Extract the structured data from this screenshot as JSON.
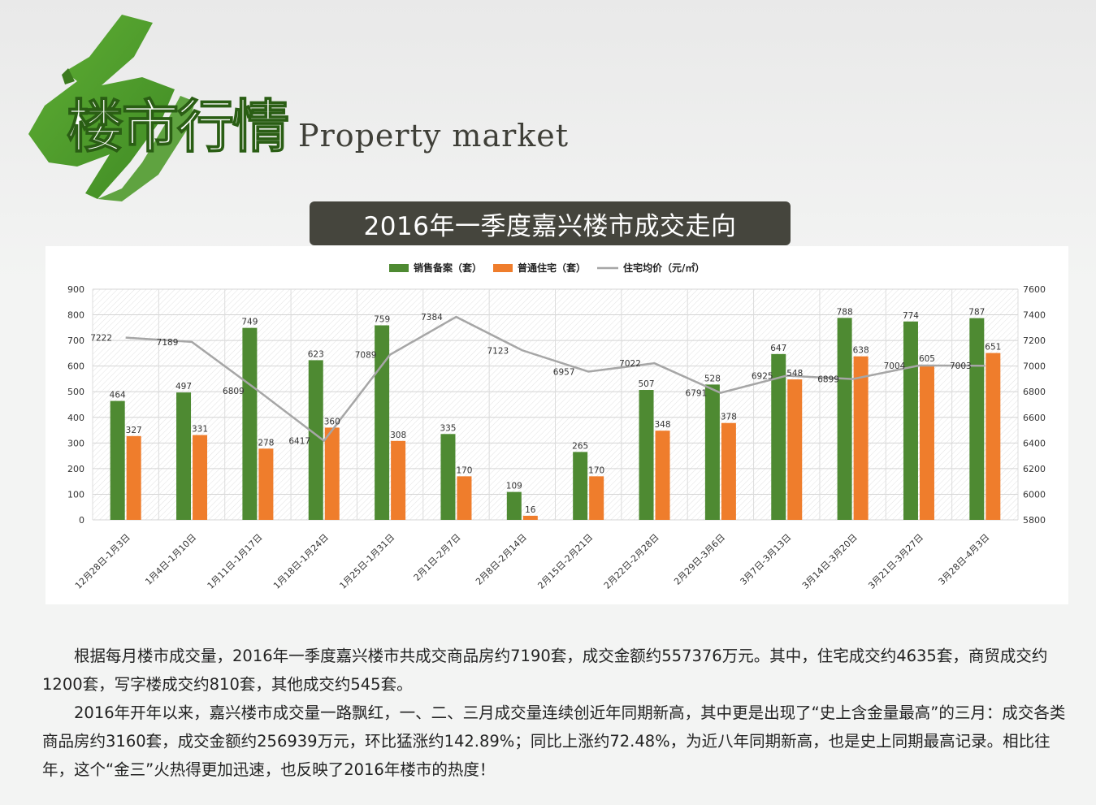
{
  "header": {
    "title_cn": "楼市行情",
    "title_en": "Property market",
    "colors": {
      "brush": "#55a02e",
      "brush_dark": "#3b7a1e",
      "text_en": "#3f3f38"
    }
  },
  "chart_data": {
    "title": "2016年一季度嘉兴楼市成交走向",
    "type": "bar",
    "categories": [
      "12月28日-1月3日",
      "1月4日-1月10日",
      "1月11日-1月17日",
      "1月18日-1月24日",
      "1月25日-1月31日",
      "2月1日-2月7日",
      "2月8日-2月14日",
      "2月15日-2月21日",
      "2月22日-2月28日",
      "2月29日-3月6日",
      "3月7日-3月13日",
      "3月14日-3月20日",
      "3月21日-3月27日",
      "3月28日-4月3日"
    ],
    "series": [
      {
        "name": "销售备案（套）",
        "type": "bar",
        "axis": "left",
        "color": "#4e8a32",
        "values": [
          464,
          497,
          749,
          623,
          759,
          335,
          109,
          265,
          507,
          528,
          647,
          788,
          774,
          787
        ]
      },
      {
        "name": "普通住宅（套）",
        "type": "bar",
        "axis": "left",
        "color": "#ef7d2c",
        "values": [
          327,
          331,
          278,
          360,
          308,
          170,
          16,
          170,
          348,
          378,
          548,
          638,
          605,
          651
        ]
      },
      {
        "name": "住宅均价（元/㎡）",
        "type": "line",
        "axis": "right",
        "color": "#a6a6a6",
        "values": [
          7222,
          7189,
          6809,
          6417,
          7089,
          7384,
          7123,
          6957,
          7022,
          6791,
          6925,
          6899,
          7004,
          7003
        ]
      }
    ],
    "y_left": {
      "min": 0,
      "max": 900,
      "ticks": [
        0,
        100,
        200,
        300,
        400,
        500,
        600,
        700,
        800,
        900
      ]
    },
    "y_right": {
      "min": 5800,
      "max": 7600,
      "ticks": [
        5800,
        6000,
        6200,
        6400,
        6600,
        6800,
        7000,
        7200,
        7400,
        7600
      ]
    },
    "grid": true,
    "legend_position": "top-center"
  },
  "article": {
    "paragraphs": [
      "根据每月楼市成交量，2016年一季度嘉兴楼市共成交商品房约7190套，成交金额约557376万元。其中，住宅成交约4635套，商贸成交约1200套，写字楼成交约810套，其他成交约545套。",
      "2016年开年以来，嘉兴楼市成交量一路飘红，一、二、三月成交量连续创近年同期新高，其中更是出现了“史上含金量最高”的三月：成交各类商品房约3160套，成交金额约256939万元，环比猛涨约142.89%；同比上涨约72.48%，为近八年同期新高，也是史上同期最高记录。相比往年，这个“金三”火热得更加迅速，也反映了2016年楼市的热度！"
    ]
  }
}
